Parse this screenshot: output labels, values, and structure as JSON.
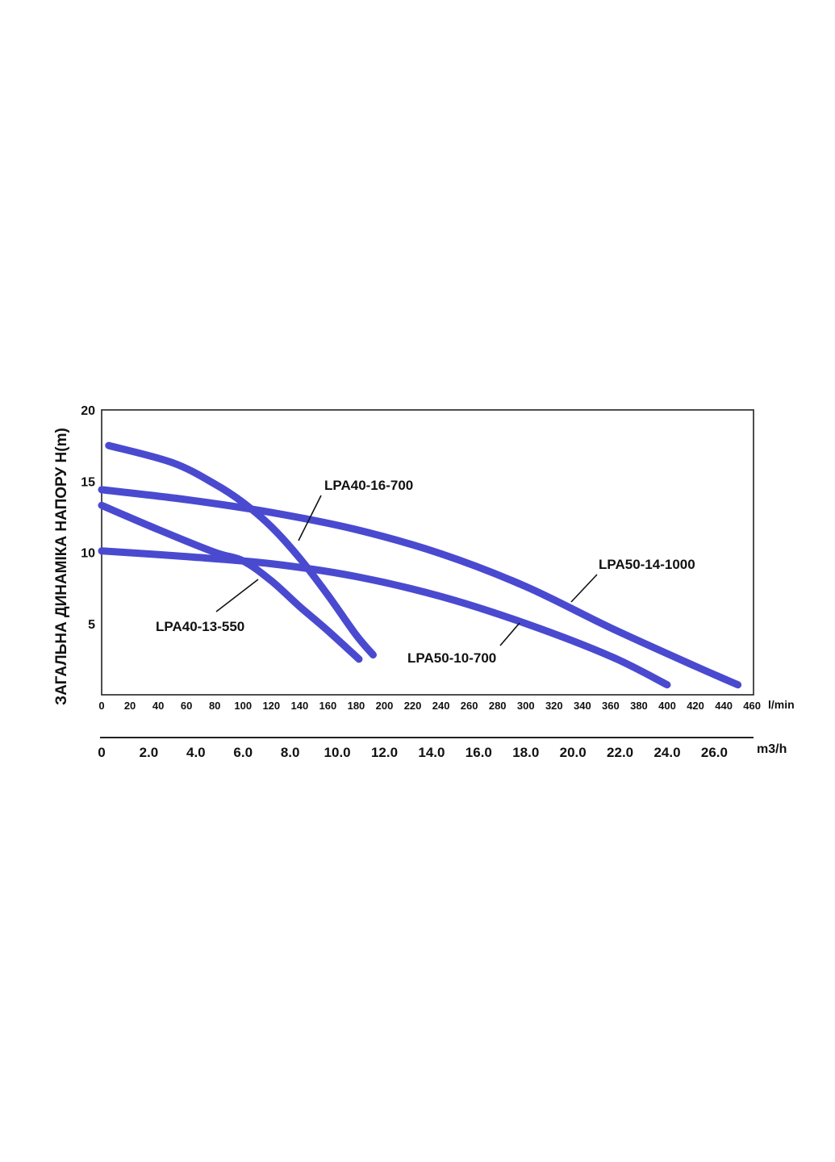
{
  "chart_data": {
    "type": "line",
    "title": "",
    "ylabel": "ЗАГАЛЬНА ДИНАМІКА НАПОРУ H(m)",
    "xlabel_primary": "l/min",
    "xlabel_secondary": "m3/h",
    "xlim": [
      0,
      460
    ],
    "ylim": [
      0,
      20
    ],
    "yticks": [
      5,
      10,
      15,
      20
    ],
    "xticks_primary": [
      0,
      20,
      40,
      60,
      80,
      100,
      120,
      140,
      160,
      180,
      200,
      220,
      240,
      260,
      280,
      300,
      320,
      340,
      360,
      380,
      400,
      420,
      440,
      460
    ],
    "xticks_secondary": [
      "0",
      "2.0",
      "4.0",
      "6.0",
      "8.0",
      "10.0",
      "12.0",
      "14.0",
      "16.0",
      "18.0",
      "20.0",
      "22.0",
      "24.0",
      "26.0"
    ],
    "grid": false,
    "series": [
      {
        "name": "LPA40-16-700",
        "color": "#4a4ad0",
        "x": [
          5,
          50,
          80,
          100,
          120,
          140,
          160,
          180,
          192
        ],
        "y": [
          17.5,
          16.3,
          14.8,
          13.5,
          11.8,
          9.6,
          7.0,
          4.2,
          2.8
        ]
      },
      {
        "name": "LPA40-13-550",
        "color": "#4a4ad0",
        "x": [
          0,
          40,
          80,
          100,
          120,
          140,
          160,
          182
        ],
        "y": [
          13.3,
          11.6,
          10.0,
          9.4,
          8.0,
          6.2,
          4.5,
          2.5
        ]
      },
      {
        "name": "LPA50-14-1000",
        "color": "#4a4ad0",
        "x": [
          0,
          60,
          120,
          180,
          240,
          300,
          360,
          420,
          450
        ],
        "y": [
          14.4,
          13.7,
          12.8,
          11.6,
          9.9,
          7.6,
          4.7,
          2.0,
          0.7
        ]
      },
      {
        "name": "LPA50-10-700",
        "color": "#4a4ad0",
        "x": [
          0,
          60,
          120,
          180,
          240,
          300,
          360,
          400
        ],
        "y": [
          10.1,
          9.7,
          9.2,
          8.3,
          6.9,
          5.0,
          2.7,
          0.7
        ]
      }
    ]
  }
}
